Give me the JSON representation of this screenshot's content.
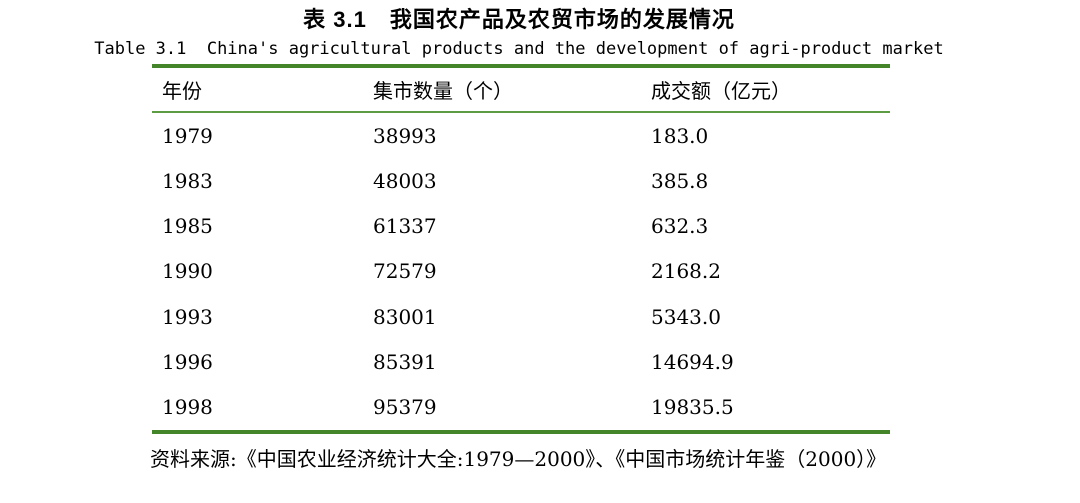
{
  "title_cn": "表 3.1　我国农产品及农贸市场的发展情况",
  "title_en": "Table 3.1  China's agricultural products and the development of agri-product market",
  "table": {
    "columns": [
      "年份",
      "集市数量（个）",
      "成交额（亿元）"
    ],
    "rows": [
      [
        "1979",
        "38993",
        "183.0"
      ],
      [
        "1983",
        "48003",
        "385.8"
      ],
      [
        "1985",
        "61337",
        "632.3"
      ],
      [
        "1990",
        "72579",
        "2168.2"
      ],
      [
        "1993",
        "83001",
        "5343.0"
      ],
      [
        "1996",
        "85391",
        "14694.9"
      ],
      [
        "1998",
        "95379",
        "19835.5"
      ]
    ]
  },
  "source": "资料来源:《中国农业经济统计大全:1979—2000》、《中国市场统计年鉴（2000）》",
  "colors": {
    "rule_thick_green": "#44852a",
    "rule_thin_green": "#5d9c42",
    "text": "#000000",
    "background": "#ffffff"
  }
}
